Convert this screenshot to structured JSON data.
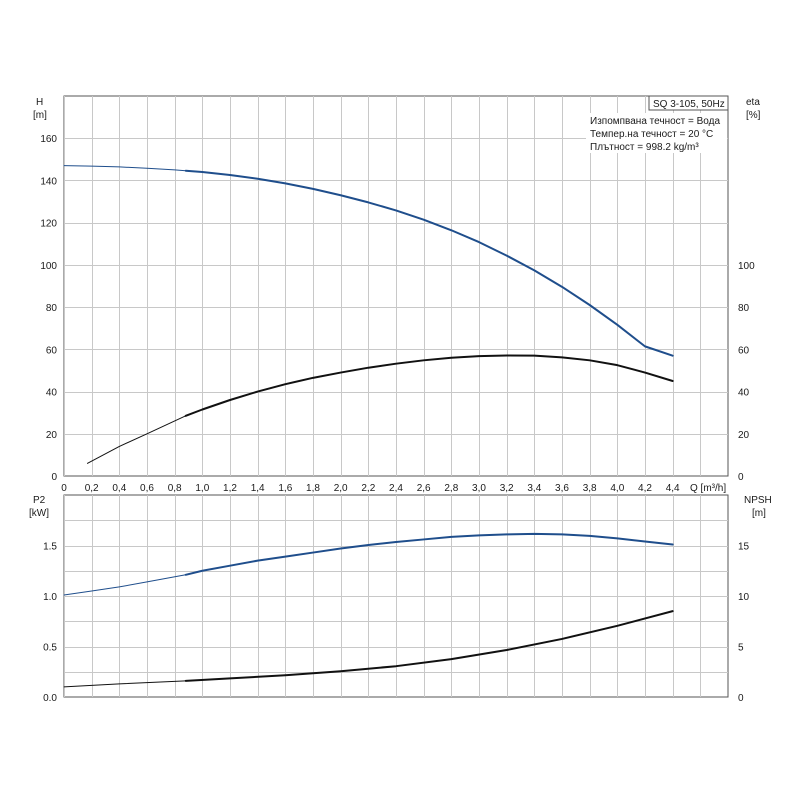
{
  "chart_data": [
    {
      "type": "line",
      "title": "SQ 3-105, 50Hz",
      "notes": [
        "Изпомпвана течност = Вода",
        "Темпер.на течност = 20 °C",
        "Плътност = 998.2 kg/m³"
      ],
      "xlabel": "Q [m³/h]",
      "xlim": [
        0,
        4.8
      ],
      "x_ticks": [
        "0",
        "0,2",
        "0,4",
        "0,6",
        "0,8",
        "1,0",
        "1,2",
        "1,4",
        "1,6",
        "1,8",
        "2,0",
        "2,2",
        "2,4",
        "2,6",
        "2,8",
        "3,0",
        "3,2",
        "3,4",
        "3,6",
        "3,8",
        "4,0",
        "4,2",
        "4,4"
      ],
      "y_left": {
        "label": "H",
        "unit": "[m]",
        "ylim": [
          0,
          180
        ],
        "ticks": [
          "0",
          "20",
          "40",
          "60",
          "80",
          "100",
          "120",
          "140",
          "160"
        ]
      },
      "y_right": {
        "label": "eta",
        "unit": "[%]",
        "ylim": [
          0,
          180
        ],
        "ticks": [
          "0",
          "20",
          "40",
          "60",
          "80",
          "100"
        ]
      },
      "grid": true,
      "series": [
        {
          "id": "H",
          "axis": "left",
          "color": "#1f4e8c",
          "x": [
            0,
            0.2,
            0.4,
            0.6,
            0.8,
            0.88,
            1.0,
            1.2,
            1.4,
            1.6,
            1.8,
            2.0,
            2.2,
            2.4,
            2.6,
            2.8,
            3.0,
            3.2,
            3.4,
            3.6,
            3.8,
            4.0,
            4.2,
            4.4
          ],
          "y": [
            147,
            146.8,
            146.4,
            145.8,
            145,
            144.6,
            144,
            142.6,
            140.8,
            138.6,
            136,
            133,
            129.6,
            125.8,
            121.4,
            116.4,
            110.8,
            104.4,
            97.4,
            89.6,
            81,
            71.6,
            61.4,
            57
          ]
        },
        {
          "id": "eta",
          "axis": "right",
          "color": "#111111",
          "x": [
            0.17,
            0.4,
            0.6,
            0.88,
            1.0,
            1.2,
            1.4,
            1.6,
            1.8,
            2.0,
            2.2,
            2.4,
            2.6,
            2.8,
            3.0,
            3.2,
            3.4,
            3.6,
            3.8,
            4.0,
            4.2,
            4.4
          ],
          "y": [
            6,
            14,
            20,
            28.5,
            31.5,
            36,
            40,
            43.5,
            46.5,
            49,
            51.3,
            53.2,
            54.8,
            56,
            56.8,
            57.1,
            57,
            56.2,
            54.8,
            52.5,
            49,
            45
          ]
        }
      ]
    },
    {
      "type": "line",
      "title": "",
      "xlim": [
        0,
        4.8
      ],
      "y_left": {
        "label": "P2",
        "unit": "[kW]",
        "ylim": [
          0,
          2.0
        ],
        "ticks": [
          "0.0",
          "0.5",
          "1.0",
          "1.5"
        ]
      },
      "y_right": {
        "label": "NPSH",
        "unit": "[m]",
        "ylim": [
          0,
          20
        ],
        "ticks": [
          "0",
          "5",
          "10",
          "15"
        ]
      },
      "grid": true,
      "series": [
        {
          "id": "P2",
          "axis": "left",
          "color": "#1f4e8c",
          "x": [
            0,
            0.2,
            0.4,
            0.6,
            0.88,
            1.0,
            1.2,
            1.4,
            1.6,
            1.8,
            2.0,
            2.2,
            2.4,
            2.6,
            2.8,
            3.0,
            3.2,
            3.4,
            3.6,
            3.8,
            4.0,
            4.2,
            4.4
          ],
          "y": [
            1.01,
            1.05,
            1.09,
            1.14,
            1.21,
            1.25,
            1.3,
            1.35,
            1.39,
            1.43,
            1.47,
            1.505,
            1.535,
            1.56,
            1.585,
            1.6,
            1.61,
            1.615,
            1.61,
            1.595,
            1.57,
            1.54,
            1.51
          ]
        },
        {
          "id": "NPSH",
          "axis": "right",
          "color": "#111111",
          "x": [
            0,
            0.4,
            0.88,
            1.2,
            1.6,
            2.0,
            2.4,
            2.8,
            3.2,
            3.6,
            4.0,
            4.4
          ],
          "y": [
            1.0,
            1.3,
            1.6,
            1.85,
            2.15,
            2.55,
            3.05,
            3.75,
            4.65,
            5.75,
            7.05,
            8.5
          ]
        }
      ]
    }
  ]
}
